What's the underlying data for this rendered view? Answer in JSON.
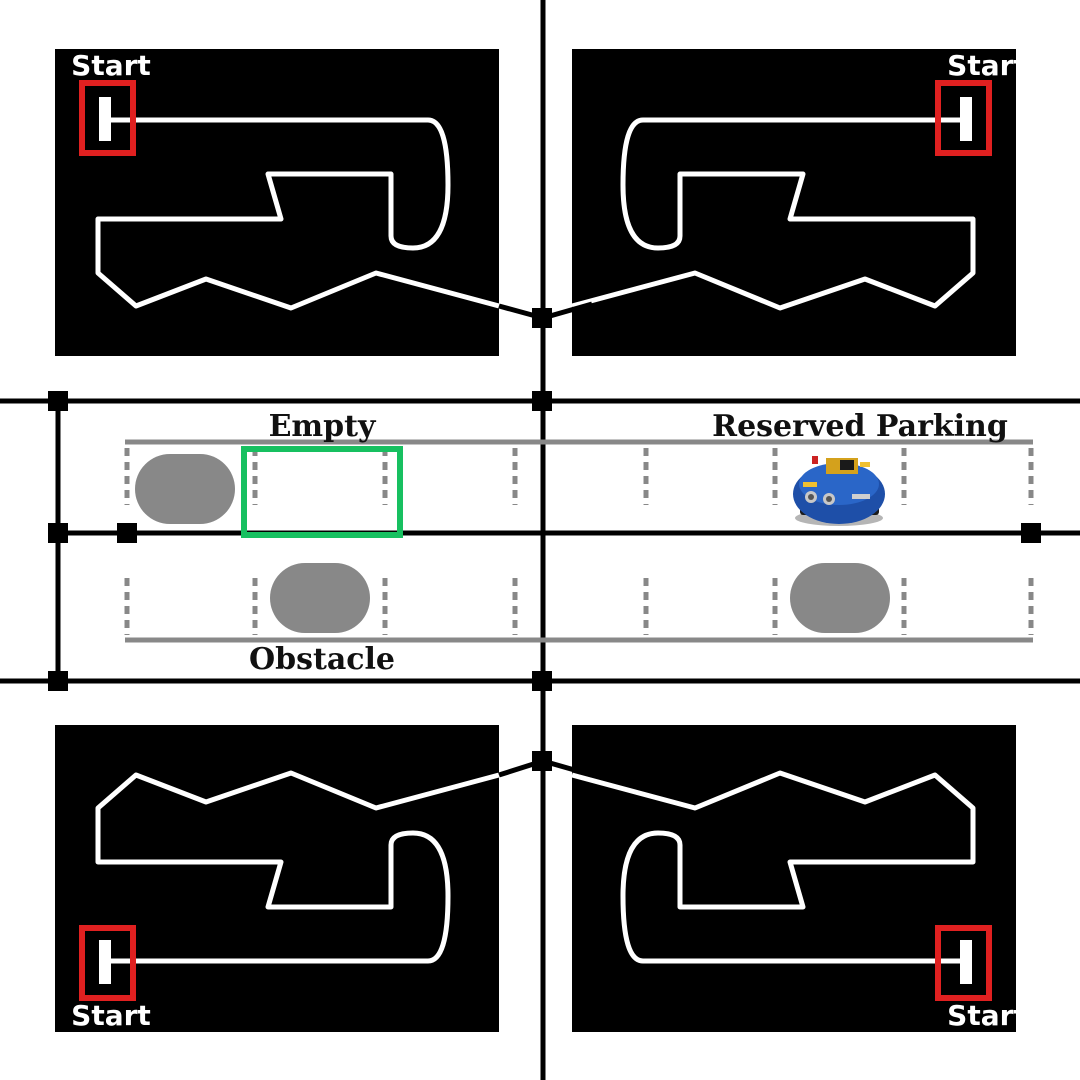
{
  "labels": {
    "start": "Start",
    "empty": "Empty",
    "reserved": "Reserved Parking",
    "obstacle": "Obstacle"
  },
  "colors": {
    "background": "#ffffff",
    "track": "#000000",
    "path": "#ffffff",
    "start_marker": "#e02020",
    "empty_slot": "#17c060",
    "parking_line": "#888888",
    "obstacle": "#888888",
    "road": "#000000"
  },
  "icons": {
    "robot": "robot-car-icon",
    "obstacle": "obstacle-icon"
  },
  "parking": {
    "top_row": [
      "obstacle",
      "empty",
      "free",
      "free",
      "reserved-robot",
      "free"
    ],
    "bottom_row": [
      "free",
      "obstacle",
      "free",
      "free",
      "obstacle",
      "free"
    ]
  }
}
